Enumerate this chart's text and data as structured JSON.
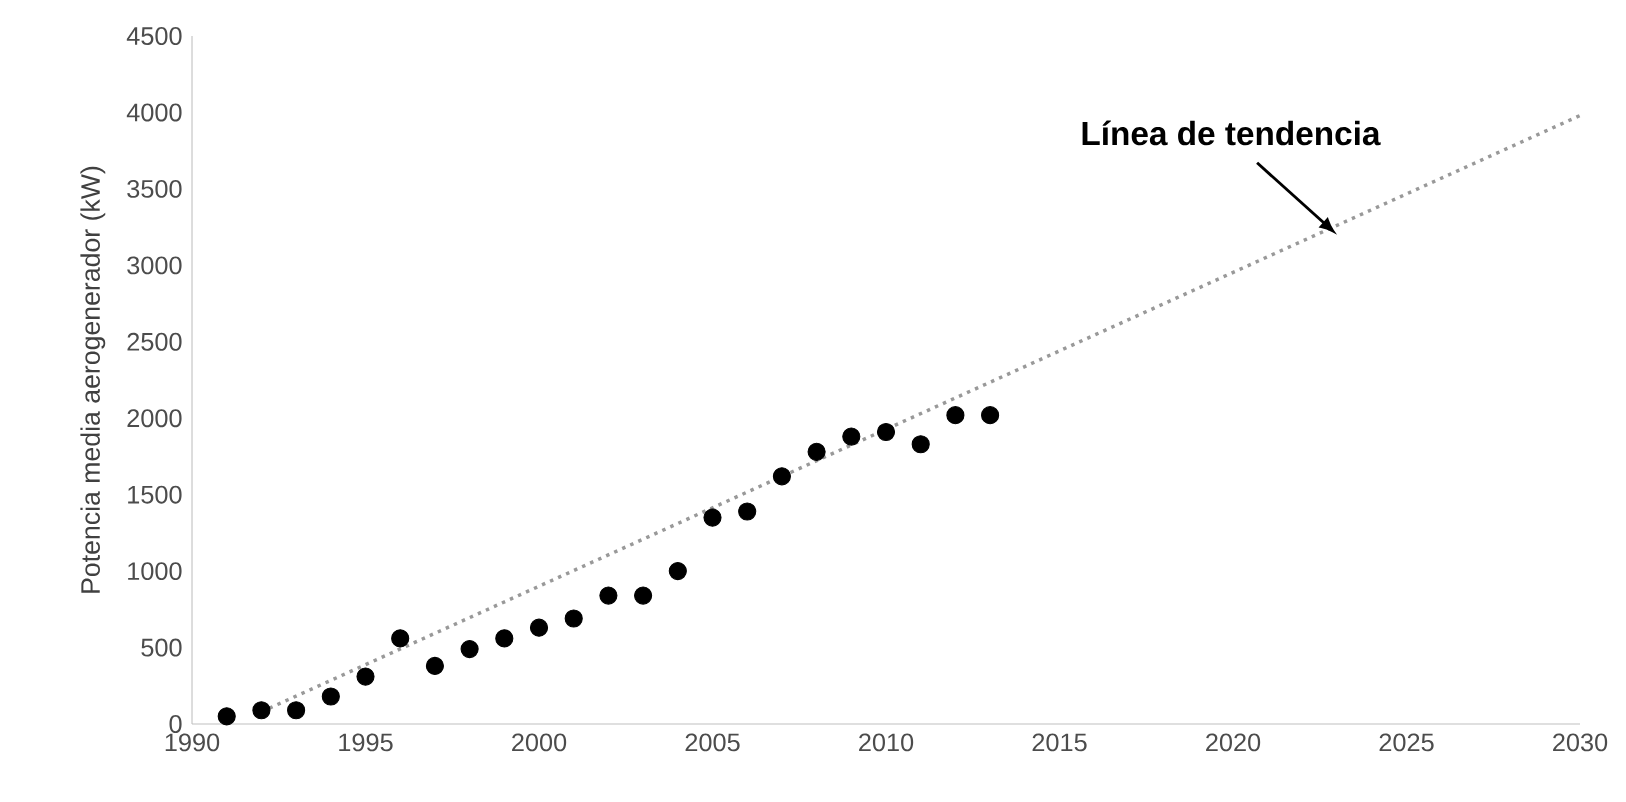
{
  "chart_data": {
    "type": "scatter",
    "ylabel": "Potencia media aerogenerador (kW)",
    "xlim": [
      1990,
      2030
    ],
    "xticks": [
      1990,
      1995,
      2000,
      2005,
      2010,
      2015,
      2020,
      2025,
      2030
    ],
    "ylim": [
      0,
      4500
    ],
    "yticks": [
      0,
      500,
      1000,
      1500,
      2000,
      2500,
      3000,
      3500,
      4000,
      4500
    ],
    "grid": false,
    "annotations": [
      {
        "text": "Línea de tendencia",
        "x": 2023,
        "y": 3200
      }
    ],
    "series": [
      {
        "color": "#000000",
        "marker": "circle",
        "x": [
          1991,
          1992,
          1993,
          1994,
          1995,
          1996,
          1997,
          1998,
          1999,
          2000,
          2001,
          2002,
          2003,
          2004,
          2005,
          2006,
          2007,
          2008,
          2009,
          2010,
          2011,
          2012,
          2013
        ],
        "values": [
          50,
          90,
          90,
          180,
          310,
          560,
          380,
          490,
          560,
          630,
          690,
          840,
          840,
          1000,
          1350,
          1390,
          1620,
          1780,
          1880,
          1910,
          1830,
          2020,
          2020
        ]
      },
      {
        "type": "line",
        "color": "#999999",
        "line_style": "dotted",
        "marker": "none",
        "x": [
          1992,
          2030
        ],
        "values": [
          80,
          3980
        ]
      }
    ]
  }
}
